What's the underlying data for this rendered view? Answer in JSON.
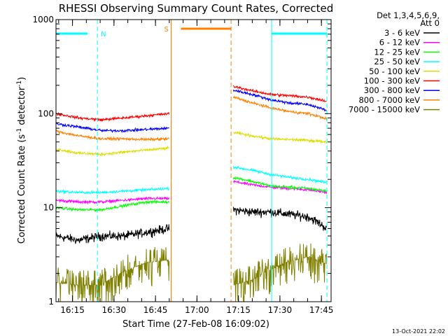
{
  "chart_data": {
    "type": "line",
    "title": "RHESSI Observing Summary Count Rates, Corrected",
    "xlabel": "Start Time (27-Feb-08 16:09:02)",
    "ylabel": "Corrected Count Rate (s",
    "ylabel_sup1": "-1",
    "ylabel_mid": " detector",
    "ylabel_sup2": "-1",
    "ylabel_end": ")",
    "yscale": "log",
    "ylim": [
      1,
      1000
    ],
    "xlim": [
      "16:09:02",
      "17:48:30"
    ],
    "x_ticks": [
      "16:15",
      "16:30",
      "16:45",
      "17:00",
      "17:15",
      "17:30",
      "17:45"
    ],
    "y_ticks": [
      "1",
      "10",
      "100",
      "1000"
    ],
    "legend_header": [
      "Det 1,3,4,5,6,9,",
      "Att 0"
    ],
    "legend_placement": "right",
    "footer_date": "13-Oct-2021 22:02",
    "markers": [
      {
        "label": "N",
        "color": "#00ffff",
        "start": "16:09:02",
        "end": "16:24:00",
        "end_dashed": true
      },
      {
        "label": "S",
        "color": "#ff8000",
        "start": "16:50:40",
        "end": "17:12:20",
        "end_dashed": true
      },
      {
        "label": "",
        "color": "#00ffff",
        "start": "17:27:00",
        "end": "17:47:00",
        "end_dashed": true
      }
    ],
    "gap": [
      "16:50:00",
      "17:13:00"
    ],
    "series": [
      {
        "name": "3 - 6 keV",
        "color": "#000000",
        "seg1": [
          5.0,
          4.5,
          5.0,
          5.0,
          5.5,
          6.0
        ],
        "seg2": [
          9.5,
          9.0,
          9.0,
          8.5,
          8.0,
          6.0
        ]
      },
      {
        "name": "6 - 12 keV",
        "color": "#ff00ff",
        "seg1": [
          12.0,
          11.5,
          11.5,
          12.0,
          12.5,
          12.5
        ],
        "seg2": [
          19.0,
          17.5,
          16.5,
          16.0,
          15.5,
          14.5
        ]
      },
      {
        "name": "12 - 25 keV",
        "color": "#00ff00",
        "seg1": [
          10.0,
          9.5,
          9.5,
          10.5,
          11.5,
          11.5
        ],
        "seg2": [
          21.0,
          19.0,
          17.0,
          16.5,
          16.0,
          15.0
        ]
      },
      {
        "name": "25 - 50 keV",
        "color": "#00ffff",
        "seg1": [
          15.0,
          14.5,
          14.5,
          15.0,
          15.5,
          16.0
        ],
        "seg2": [
          27.0,
          25.0,
          22.5,
          21.0,
          20.0,
          18.5
        ]
      },
      {
        "name": "50 - 100 keV",
        "color": "#dddd00",
        "seg1": [
          42.0,
          38.0,
          37.0,
          39.0,
          41.0,
          43.0
        ],
        "seg2": [
          63.0,
          58.0,
          54.0,
          53.0,
          52.0,
          50.0
        ]
      },
      {
        "name": "100 - 300 keV",
        "color": "#ff0000",
        "seg1": [
          100.0,
          90.0,
          86.0,
          90.0,
          95.0,
          100.0
        ],
        "seg2": [
          195.0,
          175.0,
          160.0,
          155.0,
          150.0,
          135.0
        ]
      },
      {
        "name": "300 - 800 keV",
        "color": "#0000ff",
        "seg1": [
          78.0,
          72.0,
          66.0,
          66.0,
          68.0,
          70.0
        ],
        "seg2": [
          178.0,
          160.0,
          140.0,
          130.0,
          125.0,
          108.0
        ]
      },
      {
        "name": "800 - 7000 keV",
        "color": "#ff8000",
        "seg1": [
          65.0,
          58.0,
          54.0,
          54.0,
          53.0,
          54.0
        ],
        "seg2": [
          150.0,
          130.0,
          115.0,
          105.0,
          100.0,
          88.0
        ]
      },
      {
        "name": "7000 - 15000 keV",
        "color": "#808000",
        "seg1": [
          1.6,
          1.5,
          1.5,
          2.1,
          2.6,
          2.8
        ],
        "seg2": [
          1.5,
          1.7,
          2.2,
          2.7,
          3.0,
          2.5
        ]
      }
    ]
  }
}
